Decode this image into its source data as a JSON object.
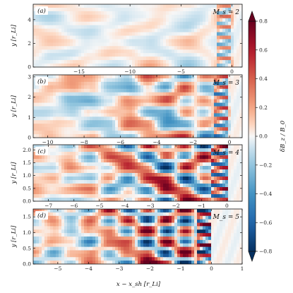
{
  "chart_data": {
    "type": "heatmap",
    "xlabel": "x − x_sh [r_Li]",
    "colorbar": {
      "label": "δB_z / B_0",
      "range": [
        -0.8,
        0.8
      ],
      "ticks": [
        "0.8",
        "0.6",
        "0.4",
        "0.2",
        "0.0",
        "−0.2",
        "−0.4",
        "−0.6",
        "−0.8"
      ],
      "tick_values": [
        0.8,
        0.6,
        0.4,
        0.2,
        0.0,
        -0.2,
        -0.4,
        -0.6,
        -0.8
      ],
      "colormap": "RdBu_r",
      "low_color": "#053061",
      "mid_color": "#f7f7f7",
      "high_color": "#67001f"
    },
    "panels": [
      {
        "label": "(a)",
        "mach": "M_s = 2",
        "ylabel": "y [r_Li]",
        "xlim": [
          -19.5,
          1.0
        ],
        "ylim": [
          0,
          5.3
        ],
        "xticks": [
          -15,
          -10,
          -5,
          0
        ],
        "xtick_labels": [
          "−15",
          "−10",
          "−5",
          "0"
        ],
        "yticks": [
          0,
          2,
          4
        ],
        "ytick_labels": [
          "0",
          "2",
          "4"
        ],
        "amplitude": 0.35,
        "grid": [
          [
            0.1,
            0.3,
            0.2,
            0.0,
            -0.2,
            -0.1,
            0.1,
            0.2,
            0.0,
            -0.1,
            0.0,
            0.0
          ],
          [
            -0.2,
            -0.3,
            -0.1,
            0.1,
            0.2,
            0.0,
            -0.2,
            -0.1,
            0.1,
            0.0,
            0.1,
            0.0
          ],
          [
            0.3,
            0.1,
            -0.2,
            -0.3,
            0.0,
            0.2,
            0.1,
            -0.1,
            -0.2,
            0.1,
            0.0,
            0.0
          ],
          [
            -0.1,
            0.2,
            0.3,
            0.1,
            -0.2,
            -0.3,
            0.0,
            0.2,
            0.1,
            -0.1,
            0.1,
            0.0
          ],
          [
            0.2,
            -0.2,
            -0.3,
            0.0,
            0.3,
            0.2,
            -0.1,
            -0.2,
            0.0,
            0.1,
            -0.1,
            0.0
          ],
          [
            0.0,
            0.3,
            0.2,
            -0.2,
            -0.1,
            0.1,
            0.3,
            0.0,
            -0.2,
            0.0,
            0.1,
            0.0
          ]
        ]
      },
      {
        "label": "(b)",
        "mach": "M_s = 3",
        "ylabel": "y [r_Li]",
        "xlim": [
          -10.8,
          0.7
        ],
        "ylim": [
          0,
          3.1
        ],
        "xticks": [
          -10,
          -8,
          -6,
          -4,
          -2,
          0
        ],
        "xtick_labels": [
          "−10",
          "−8",
          "−6",
          "−4",
          "−2",
          "0"
        ],
        "yticks": [
          0,
          1,
          2,
          3
        ],
        "ytick_labels": [
          "0",
          "1",
          "2",
          "3"
        ],
        "amplitude": 0.55,
        "grid": [
          [
            0.1,
            -0.2,
            0.3,
            0.5,
            0.2,
            -0.3,
            0.6,
            0.4,
            -0.5,
            0.3,
            0.0,
            0.0
          ],
          [
            -0.3,
            0.4,
            0.6,
            0.1,
            -0.5,
            -0.4,
            0.2,
            -0.6,
            0.5,
            -0.2,
            0.1,
            0.0
          ],
          [
            0.2,
            0.1,
            -0.4,
            -0.6,
            -0.2,
            0.5,
            0.3,
            0.6,
            -0.3,
            0.4,
            -0.1,
            0.0
          ],
          [
            -0.1,
            -0.3,
            -0.5,
            0.2,
            0.4,
            0.1,
            -0.6,
            -0.3,
            0.5,
            -0.4,
            0.2,
            0.0
          ],
          [
            0.3,
            0.2,
            0.1,
            -0.4,
            -0.3,
            0.6,
            0.4,
            -0.5,
            -0.4,
            0.3,
            -0.2,
            0.0
          ],
          [
            -0.2,
            0.4,
            0.3,
            0.2,
            -0.5,
            -0.2,
            0.5,
            0.3,
            0.6,
            -0.5,
            0.1,
            0.0
          ]
        ]
      },
      {
        "label": "(c)",
        "mach": "M_s = 4",
        "ylabel": "y [r_Li]",
        "xlim": [
          -7.6,
          0.6
        ],
        "ylim": [
          0,
          2.2
        ],
        "xticks": [
          -7,
          -6,
          -5,
          -4,
          -3,
          -2,
          -1,
          0
        ],
        "xtick_labels": [
          "−7",
          "−6",
          "−5",
          "−4",
          "−3",
          "−2",
          "−1",
          "0"
        ],
        "yticks": [
          0,
          0.5,
          1.0,
          1.5,
          2.0
        ],
        "ytick_labels": [
          "0.0",
          "0.5",
          "1.0",
          "1.5",
          "2.0"
        ],
        "amplitude": 0.7,
        "grid": [
          [
            -0.2,
            0.3,
            -0.4,
            0.5,
            0.2,
            -0.6,
            0.7,
            -0.5,
            0.8,
            -0.7,
            0.3,
            0.0
          ],
          [
            0.4,
            -0.1,
            0.2,
            -0.3,
            0.6,
            0.3,
            -0.7,
            0.6,
            -0.5,
            0.7,
            -0.2,
            0.0
          ],
          [
            -0.3,
            -0.4,
            0.5,
            0.3,
            -0.2,
            0.5,
            0.4,
            -0.8,
            0.6,
            -0.4,
            0.2,
            0.0
          ],
          [
            0.2,
            0.5,
            -0.3,
            -0.5,
            0.4,
            -0.4,
            0.6,
            0.5,
            -0.7,
            0.5,
            -0.3,
            0.0
          ],
          [
            0.5,
            0.2,
            0.3,
            0.4,
            -0.5,
            0.2,
            -0.6,
            0.7,
            0.4,
            -0.6,
            0.2,
            0.0
          ],
          [
            -0.1,
            -0.5,
            -0.2,
            0.1,
            0.3,
            -0.3,
            0.5,
            -0.6,
            0.7,
            0.3,
            -0.1,
            0.0
          ]
        ]
      },
      {
        "label": "(d)",
        "mach": "M_s = 5",
        "ylabel": "y [r_Li]",
        "xlim": [
          -5.8,
          1.0
        ],
        "ylim": [
          0,
          1.75
        ],
        "xticks": [
          -5,
          -4,
          -3,
          -2,
          -1,
          0,
          1
        ],
        "xtick_labels": [
          "−5",
          "−4",
          "−3",
          "−2",
          "−1",
          "0",
          "1"
        ],
        "yticks": [
          0,
          0.5,
          1.0,
          1.5
        ],
        "ytick_labels": [
          "0.0",
          "0.5",
          "1.0",
          "1.5"
        ],
        "amplitude": 0.85,
        "grid": [
          [
            0.3,
            -0.2,
            0.4,
            -0.5,
            0.6,
            -0.7,
            0.8,
            -0.8,
            0.7,
            -0.6,
            0.2,
            0.0
          ],
          [
            -0.2,
            0.4,
            -0.3,
            0.5,
            -0.4,
            0.7,
            -0.8,
            0.8,
            -0.7,
            0.6,
            -0.1,
            0.0
          ],
          [
            0.4,
            0.1,
            -0.5,
            0.2,
            0.6,
            -0.5,
            0.7,
            -0.6,
            0.8,
            -0.8,
            0.3,
            0.0
          ],
          [
            -0.4,
            0.3,
            0.2,
            -0.6,
            0.3,
            0.5,
            -0.7,
            0.8,
            -0.6,
            0.7,
            -0.2,
            0.0
          ],
          [
            0.2,
            -0.5,
            0.4,
            0.3,
            -0.5,
            0.4,
            0.6,
            -0.8,
            0.7,
            -0.5,
            0.1,
            0.0
          ],
          [
            -0.3,
            0.2,
            -0.4,
            0.5,
            0.2,
            -0.6,
            0.8,
            0.6,
            -0.8,
            0.8,
            0.0,
            0.0
          ]
        ]
      }
    ]
  }
}
